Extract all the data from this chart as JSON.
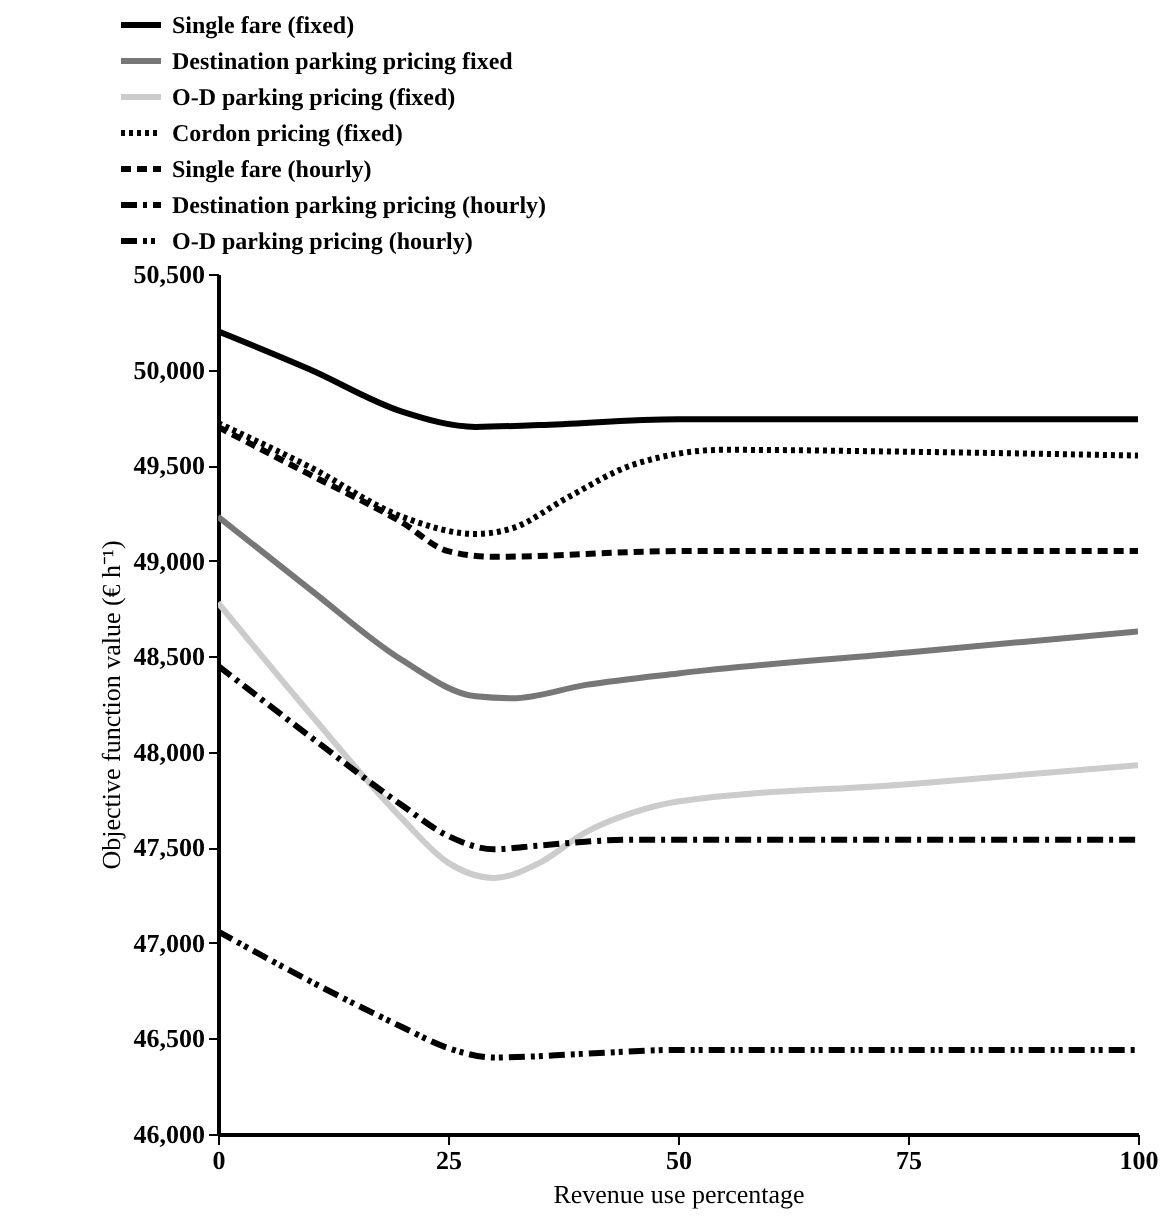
{
  "chart_data": {
    "type": "line",
    "xlabel": "Revenue use percentage",
    "ylabel": "Objective function value (€ h⁻¹)",
    "xlim": [
      0,
      100
    ],
    "xticks": [
      0,
      25,
      50,
      75,
      100
    ],
    "ylim": [
      46000,
      50500
    ],
    "yticks": [
      {
        "value": 46000,
        "label": "46,000"
      },
      {
        "value": 46500,
        "label": "46,500"
      },
      {
        "value": 47000,
        "label": "47,000"
      },
      {
        "value": 47500,
        "label": "47,500"
      },
      {
        "value": 48000,
        "label": "48,000"
      },
      {
        "value": 48500,
        "label": "48,500"
      },
      {
        "value": 49000,
        "label": "49,000"
      },
      {
        "value": 49500,
        "label": "49,500"
      },
      {
        "value": 50000,
        "label": "50,000"
      },
      {
        "value": 50500,
        "label": "50,500"
      }
    ],
    "grid": false,
    "legend": "top left",
    "series": [
      {
        "name": "Single fare (fixed)",
        "color": "#000000",
        "line_style": "solid",
        "x": [
          0,
          10,
          20,
          28,
          35,
          50,
          100
        ],
        "values": [
          50200,
          50000,
          49780,
          49700,
          49710,
          49740,
          49740
        ]
      },
      {
        "name": "Destination parking pricing fixed",
        "color": "#777777",
        "line_style": "solid",
        "x": [
          0,
          10,
          20,
          28,
          32,
          40,
          50,
          75,
          100
        ],
        "values": [
          49230,
          48850,
          48480,
          48290,
          48280,
          48350,
          48410,
          48520,
          48630
        ]
      },
      {
        "name": "O-D parking pricing (fixed)",
        "color": "#cccccc",
        "line_style": "solid",
        "x": [
          0,
          10,
          20,
          25,
          30,
          35,
          40,
          45,
          50,
          75,
          100
        ],
        "values": [
          48780,
          48200,
          47650,
          47420,
          47340,
          47420,
          47580,
          47680,
          47740,
          47830,
          47930
        ]
      },
      {
        "name": "Cordon pricing (fixed)",
        "color": "#000000",
        "line_style": "dotted",
        "x": [
          0,
          10,
          20,
          28,
          32,
          38,
          45,
          55,
          75,
          100
        ],
        "values": [
          49720,
          49490,
          49230,
          49140,
          49170,
          49330,
          49500,
          49580,
          49570,
          49550
        ]
      },
      {
        "name": "Single fare (hourly)",
        "color": "#000000",
        "line_style": "dashed",
        "x": [
          0,
          10,
          20,
          25,
          30,
          50,
          100
        ],
        "values": [
          49700,
          49450,
          49200,
          49050,
          49020,
          49050,
          49050
        ]
      },
      {
        "name": "Destination parking pricing (hourly)",
        "color": "#000000",
        "line_style": "dashdot",
        "x": [
          0,
          10,
          20,
          25,
          30,
          35,
          45,
          100
        ],
        "values": [
          48450,
          48080,
          47720,
          47560,
          47490,
          47510,
          47540,
          47540
        ]
      },
      {
        "name": "O-D parking pricing (hourly)",
        "color": "#000000",
        "line_style": "dashdotdot",
        "x": [
          0,
          10,
          20,
          25,
          30,
          40,
          50,
          100
        ],
        "values": [
          47060,
          46800,
          46560,
          46450,
          46400,
          46420,
          46440,
          46440
        ]
      }
    ]
  }
}
